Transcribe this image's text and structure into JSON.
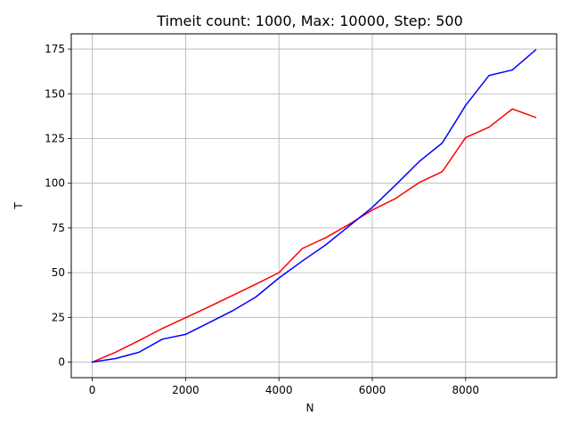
{
  "chart_data": {
    "type": "line",
    "title": "Timeit count: 1000, Max: 10000, Step: 500",
    "xlabel": "N",
    "ylabel": "T",
    "xlim": [
      -450,
      9950
    ],
    "ylim": [
      -8.7,
      183.5
    ],
    "xticks": [
      0,
      2000,
      4000,
      6000,
      8000
    ],
    "yticks": [
      0,
      25,
      50,
      75,
      100,
      125,
      150,
      175
    ],
    "grid": true,
    "x": [
      0,
      500,
      1000,
      1500,
      2000,
      2500,
      3000,
      3500,
      4000,
      4500,
      5000,
      5500,
      6000,
      6500,
      7000,
      7500,
      8000,
      8500,
      9000,
      9500
    ],
    "series": [
      {
        "color": "#ff0000",
        "values": [
          0,
          5.5,
          12.0,
          18.8,
          24.8,
          30.9,
          37.2,
          43.5,
          50.0,
          63.5,
          69.5,
          77.0,
          85.0,
          91.5,
          100.3,
          106.5,
          125.5,
          131.3,
          141.5,
          136.8
        ]
      },
      {
        "color": "#0000ff",
        "values": [
          0,
          2.0,
          5.5,
          12.8,
          15.5,
          22.0,
          28.6,
          36.3,
          47.0,
          56.5,
          65.5,
          76.0,
          86.5,
          99.0,
          112.0,
          122.5,
          143.5,
          160.2,
          163.3,
          174.5
        ]
      }
    ]
  }
}
